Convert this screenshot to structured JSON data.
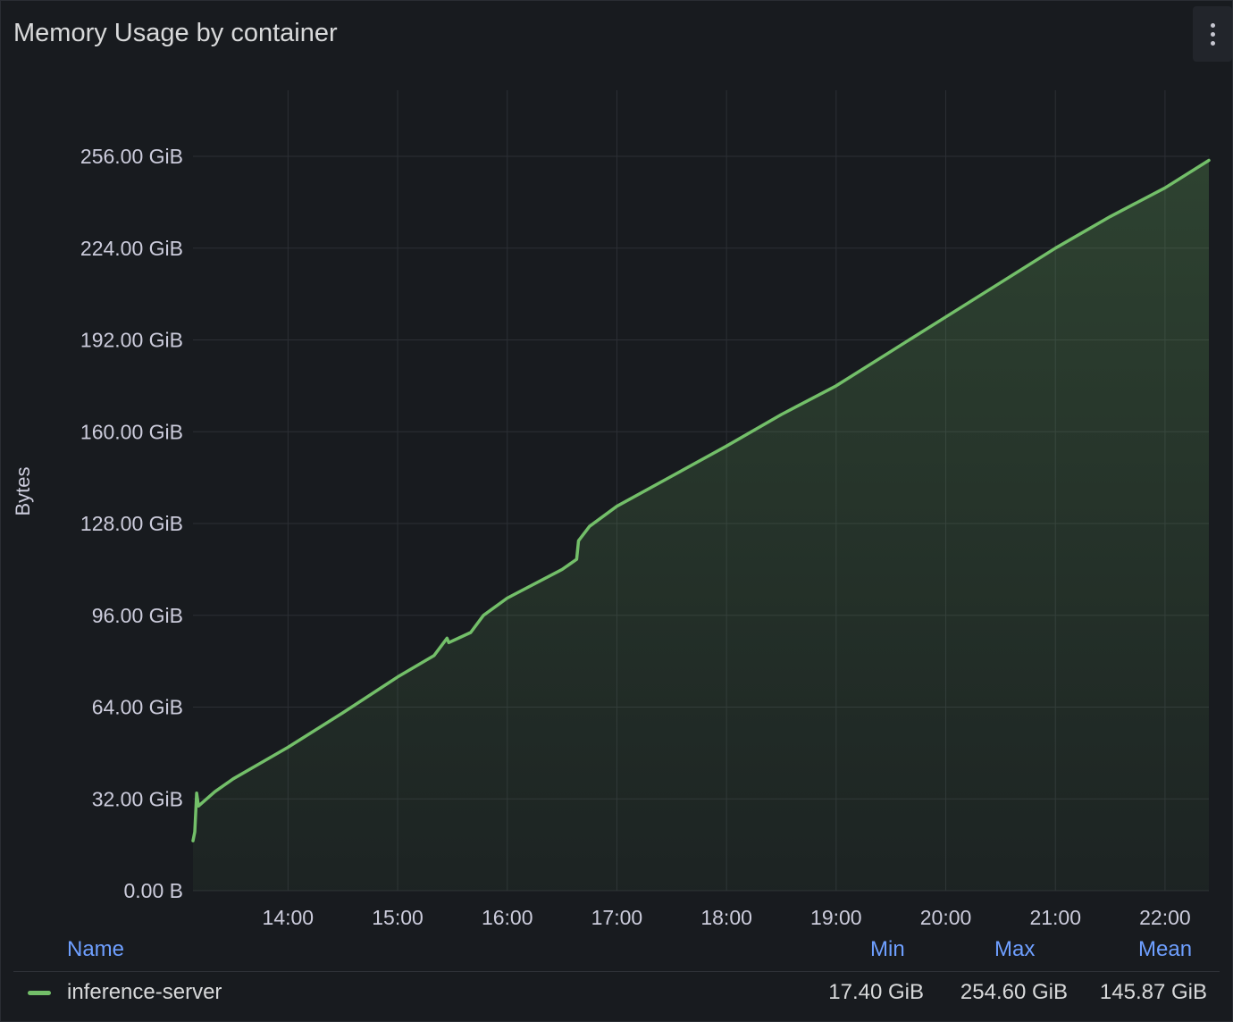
{
  "panel": {
    "title": "Memory Usage by container"
  },
  "icons": {
    "menu": "vertical-dots-icon"
  },
  "colors": {
    "series": "#73bf69",
    "legend_header": "#6e9fff",
    "grid": "#2c2f35"
  },
  "chart_data": {
    "type": "area",
    "title": "Memory Usage by container",
    "ylabel": "Bytes",
    "xlabel": "",
    "ylim": [
      0,
      256
    ],
    "y_unit": "GiB",
    "y_ticks": [
      "0.00 B",
      "32.00 GiB",
      "64.00 GiB",
      "96.00 GiB",
      "128.00 GiB",
      "160.00 GiB",
      "192.00 GiB",
      "224.00 GiB",
      "256.00 GiB"
    ],
    "x_ticks": [
      "14:00",
      "15:00",
      "16:00",
      "17:00",
      "18:00",
      "19:00",
      "20:00",
      "21:00",
      "22:00"
    ],
    "xlim": [
      "13:08",
      "22:24"
    ],
    "legend_placement": "bottom",
    "series": [
      {
        "name": "inference-server",
        "color": "#73bf69",
        "points": [
          [
            "13:08",
            17.4
          ],
          [
            "13:09",
            20.5
          ],
          [
            "13:10",
            34.0
          ],
          [
            "13:11",
            29.5
          ],
          [
            "13:20",
            34.5
          ],
          [
            "13:30",
            39.0
          ],
          [
            "13:45",
            44.5
          ],
          [
            "14:00",
            50.0
          ],
          [
            "14:30",
            62.0
          ],
          [
            "15:00",
            74.5
          ],
          [
            "15:20",
            82.0
          ],
          [
            "15:27",
            88.0
          ],
          [
            "15:28",
            86.5
          ],
          [
            "15:40",
            90.0
          ],
          [
            "15:47",
            96.0
          ],
          [
            "16:00",
            102.0
          ],
          [
            "16:30",
            112.0
          ],
          [
            "16:38",
            115.5
          ],
          [
            "16:39",
            122.0
          ],
          [
            "16:45",
            127.0
          ],
          [
            "17:00",
            134.0
          ],
          [
            "17:30",
            144.5
          ],
          [
            "18:00",
            155.0
          ],
          [
            "18:30",
            166.0
          ],
          [
            "19:00",
            176.0
          ],
          [
            "19:30",
            188.0
          ],
          [
            "20:00",
            200.0
          ],
          [
            "20:30",
            212.0
          ],
          [
            "21:00",
            224.0
          ],
          [
            "21:30",
            235.0
          ],
          [
            "22:00",
            245.0
          ],
          [
            "22:24",
            254.6
          ]
        ]
      }
    ]
  },
  "legend": {
    "headers": {
      "name": "Name",
      "min": "Min",
      "max": "Max",
      "mean": "Mean"
    },
    "rows": [
      {
        "name": "inference-server",
        "min": "17.40 GiB",
        "max": "254.60 GiB",
        "mean": "145.87 GiB"
      }
    ]
  }
}
